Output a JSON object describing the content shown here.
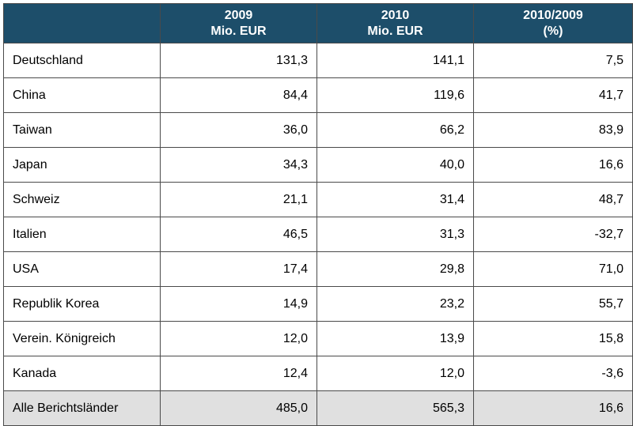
{
  "header": {
    "col0": "",
    "col1_line1": "2009",
    "col1_line2": "Mio. EUR",
    "col2_line1": "2010",
    "col2_line2": "Mio. EUR",
    "col3_line1": "2010/2009",
    "col3_line2": "(%)"
  },
  "rows": [
    {
      "country": "Deutschland",
      "v2009": "131,3",
      "v2010": "141,1",
      "change": "7,5"
    },
    {
      "country": "China",
      "v2009": "84,4",
      "v2010": "119,6",
      "change": "41,7"
    },
    {
      "country": "Taiwan",
      "v2009": "36,0",
      "v2010": "66,2",
      "change": "83,9"
    },
    {
      "country": "Japan",
      "v2009": "34,3",
      "v2010": "40,0",
      "change": "16,6"
    },
    {
      "country": "Schweiz",
      "v2009": "21,1",
      "v2010": "31,4",
      "change": "48,7"
    },
    {
      "country": "Italien",
      "v2009": "46,5",
      "v2010": "31,3",
      "change": "-32,7"
    },
    {
      "country": "USA",
      "v2009": "17,4",
      "v2010": "29,8",
      "change": "71,0"
    },
    {
      "country": "Republik Korea",
      "v2009": "14,9",
      "v2010": "23,2",
      "change": "55,7"
    },
    {
      "country": "Verein. Königreich",
      "v2009": "12,0",
      "v2010": "13,9",
      "change": "15,8"
    },
    {
      "country": "Kanada",
      "v2009": "12,4",
      "v2010": "12,0",
      "change": "-3,6"
    }
  ],
  "total": {
    "country": "Alle Berichtsländer",
    "v2009": "485,0",
    "v2010": "565,3",
    "change": "16,6"
  },
  "colors": {
    "header_bg": "#1d4e6a",
    "header_text": "#ffffff",
    "total_bg": "#e0e0e0",
    "border": "#4a4a4a"
  }
}
